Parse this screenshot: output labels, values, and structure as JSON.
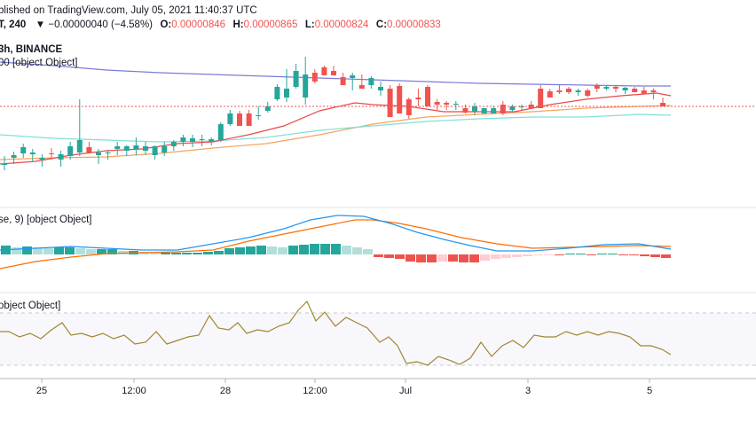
{
  "header": {
    "line1_prefix": "blished on TradingView.com, July 05, 2021 11:40:37 UTC",
    "interval": "T, 240",
    "change": "▼ −0.00000040 (−4.58%)",
    "o_label": "O:",
    "o_value": "0.00000846",
    "h_label": "H:",
    "h_value": "0.00000865",
    "l_label": "L:",
    "l_value": "0.00000824",
    "c_label": "C:",
    "c_value": "0.00000833",
    "exchange": "3h, BINANCE",
    "ma_label": "00 [object Object]"
  },
  "panes": {
    "macd_label": "se, 9) [object Object]",
    "rsi_label": "object Object]"
  },
  "colors": {
    "up": "#26a69a",
    "down": "#ef5350",
    "ma_long": "#7b7bdc",
    "ma_mid": "#f7a35c",
    "ma_short": "#e84a4a",
    "ma_cyan": "#7fe0d9",
    "macd_line": "#2196f3",
    "signal_line": "#ff6d00",
    "hist_up_strong": "#26a69a",
    "hist_up_weak": "#b2dfdb",
    "hist_down_strong": "#ef5350",
    "hist_down_weak": "#ffcdd2",
    "rsi": "#a08730",
    "last_price_line": "#ef5350"
  },
  "chart_data": {
    "type": "candlestick",
    "x_ticks": [
      "25",
      "12:00",
      "28",
      "12:00",
      "Jul",
      "3",
      "5"
    ],
    "price_pane": {
      "ohlc": [
        [
          186,
          185,
          192,
          176
        ],
        [
          178,
          175,
          185,
          171
        ],
        [
          173,
          166,
          178,
          162
        ],
        [
          174,
          172,
          182,
          168
        ],
        [
          180,
          178,
          188,
          174
        ],
        [
          173,
          174,
          180,
          167
        ],
        [
          180,
          174,
          188,
          170
        ],
        [
          176,
          165,
          180,
          160
        ],
        [
          172,
          158,
          176,
          112
        ],
        [
          166,
          172,
          170,
          160
        ],
        [
          175,
          172,
          185,
          168
        ],
        [
          173,
          172,
          180,
          169
        ],
        [
          168,
          165,
          175,
          160
        ],
        [
          170,
          165,
          176,
          164
        ],
        [
          168,
          164,
          175,
          155
        ],
        [
          170,
          165,
          175,
          160
        ],
        [
          175,
          165,
          180,
          164
        ],
        [
          172,
          165,
          176,
          160
        ],
        [
          165,
          160,
          170,
          158
        ],
        [
          160,
          155,
          165,
          152
        ],
        [
          160,
          156,
          166,
          152
        ],
        [
          158,
          157,
          165,
          152
        ],
        [
          160,
          157,
          164,
          155
        ],
        [
          158,
          140,
          160,
          138
        ],
        [
          140,
          128,
          142,
          124
        ],
        [
          128,
          142,
          130,
          125
        ],
        [
          128,
          142,
          130,
          124
        ],
        [
          130,
          130,
          135,
          120
        ],
        [
          125,
          120,
          127,
          115
        ],
        [
          112,
          98,
          114,
          95
        ],
        [
          110,
          100,
          115,
          78
        ],
        [
          98,
          80,
          100,
          72
        ],
        [
          110,
          84,
          118,
          64
        ],
        [
          82,
          92,
          94,
          78
        ],
        [
          76,
          85,
          82,
          74
        ],
        [
          80,
          85,
          85,
          74
        ],
        [
          87,
          96,
          95,
          82
        ],
        [
          88,
          85,
          102,
          82
        ],
        [
          96,
          100,
          92,
          84
        ],
        [
          96,
          88,
          100,
          86
        ],
        [
          102,
          98,
          108,
          92
        ],
        [
          100,
          132,
          100,
          96
        ],
        [
          97,
          128,
          98,
          94
        ],
        [
          112,
          130,
          134,
          110
        ],
        [
          110,
          112,
          120,
          100
        ],
        [
          98,
          120,
          118,
          96
        ],
        [
          115,
          118,
          124,
          112
        ],
        [
          116,
          118,
          124,
          114
        ],
        [
          118,
          117,
          124,
          114
        ],
        [
          122,
          127,
          128,
          118
        ],
        [
          126,
          120,
          130,
          116
        ],
        [
          128,
          122,
          128,
          124
        ],
        [
          128,
          122,
          125,
          120
        ],
        [
          118,
          128,
          130,
          114
        ],
        [
          124,
          120,
          126,
          118
        ],
        [
          120,
          120,
          124,
          118
        ],
        [
          118,
          122,
          122,
          114
        ],
        [
          100,
          122,
          120,
          96
        ],
        [
          103,
          110,
          104,
          100
        ],
        [
          102,
          104,
          106,
          96
        ],
        [
          100,
          104,
          106,
          98
        ],
        [
          104,
          102,
          108,
          100
        ],
        [
          102,
          108,
          110,
          100
        ],
        [
          96,
          100,
          104,
          94
        ],
        [
          100,
          98,
          102,
          96
        ],
        [
          98,
          100,
          104,
          96
        ],
        [
          102,
          99,
          106,
          98
        ],
        [
          100,
          104,
          104,
          98
        ],
        [
          102,
          106,
          104,
          98
        ],
        [
          102,
          104,
          112,
          100
        ],
        [
          116,
          120,
          120,
          110
        ]
      ],
      "ma_long": [
        [
          0,
          70
        ],
        [
          60,
          74
        ],
        [
          120,
          79
        ],
        [
          180,
          82
        ],
        [
          240,
          84
        ],
        [
          300,
          86
        ],
        [
          360,
          88
        ],
        [
          420,
          90
        ],
        [
          480,
          92
        ],
        [
          540,
          94
        ],
        [
          600,
          95
        ],
        [
          660,
          96
        ],
        [
          720,
          97
        ],
        [
          756,
          97
        ]
      ],
      "ma_mid": [
        [
          0,
          180
        ],
        [
          60,
          178
        ],
        [
          120,
          177
        ],
        [
          180,
          173
        ],
        [
          240,
          167
        ],
        [
          300,
          162
        ],
        [
          360,
          152
        ],
        [
          420,
          140
        ],
        [
          480,
          132
        ],
        [
          540,
          129
        ],
        [
          600,
          126
        ],
        [
          660,
          122
        ],
        [
          720,
          120
        ],
        [
          756,
          119
        ]
      ],
      "ma_short": [
        [
          0,
          185
        ],
        [
          40,
          182
        ],
        [
          80,
          175
        ],
        [
          120,
          170
        ],
        [
          160,
          168
        ],
        [
          200,
          162
        ],
        [
          240,
          160
        ],
        [
          280,
          152
        ],
        [
          320,
          142
        ],
        [
          360,
          125
        ],
        [
          400,
          116
        ],
        [
          420,
          118
        ],
        [
          460,
          120
        ],
        [
          500,
          126
        ],
        [
          540,
          126
        ],
        [
          580,
          126
        ],
        [
          620,
          118
        ],
        [
          660,
          112
        ],
        [
          700,
          108
        ],
        [
          740,
          105
        ],
        [
          756,
          108
        ]
      ],
      "ma_cyan": [
        [
          0,
          152
        ],
        [
          60,
          156
        ],
        [
          120,
          158
        ],
        [
          180,
          160
        ],
        [
          240,
          159
        ],
        [
          300,
          155
        ],
        [
          360,
          147
        ],
        [
          420,
          142
        ],
        [
          480,
          137
        ],
        [
          540,
          134
        ],
        [
          600,
          132
        ],
        [
          660,
          132
        ],
        [
          720,
          129
        ],
        [
          756,
          130
        ]
      ],
      "last_price_y": 120
    },
    "macd_pane": {
      "macd_line": [
        [
          0,
          282
        ],
        [
          40,
          280
        ],
        [
          80,
          278
        ],
        [
          120,
          280
        ],
        [
          160,
          282
        ],
        [
          200,
          282
        ],
        [
          240,
          275
        ],
        [
          280,
          268
        ],
        [
          320,
          258
        ],
        [
          350,
          248
        ],
        [
          380,
          243
        ],
        [
          410,
          244
        ],
        [
          440,
          252
        ],
        [
          470,
          262
        ],
        [
          500,
          270
        ],
        [
          530,
          277
        ],
        [
          560,
          283
        ],
        [
          600,
          283
        ],
        [
          640,
          280
        ],
        [
          680,
          276
        ],
        [
          720,
          275
        ],
        [
          756,
          281
        ]
      ],
      "signal_line": [
        [
          0,
          303
        ],
        [
          40,
          295
        ],
        [
          80,
          290
        ],
        [
          120,
          286
        ],
        [
          160,
          285
        ],
        [
          200,
          284
        ],
        [
          240,
          282
        ],
        [
          280,
          272
        ],
        [
          320,
          264
        ],
        [
          360,
          256
        ],
        [
          400,
          248
        ],
        [
          420,
          248
        ],
        [
          450,
          252
        ],
        [
          480,
          258
        ],
        [
          520,
          268
        ],
        [
          560,
          275
        ],
        [
          600,
          280
        ],
        [
          640,
          279
        ],
        [
          680,
          278
        ],
        [
          720,
          277
        ],
        [
          756,
          278
        ]
      ],
      "zero_y": 287,
      "histogram": [
        [
          6,
          287,
          277
        ],
        [
          18,
          287,
          279
        ],
        [
          30,
          287,
          278
        ],
        [
          42,
          287,
          279
        ],
        [
          54,
          287,
          280
        ],
        [
          66,
          287,
          279
        ],
        [
          78,
          287,
          279
        ],
        [
          90,
          287,
          280
        ],
        [
          102,
          287,
          281
        ],
        [
          114,
          287,
          281
        ],
        [
          126,
          287,
          281
        ],
        [
          138,
          287,
          283
        ],
        [
          150,
          287,
          283
        ],
        [
          162,
          287,
          284
        ],
        [
          174,
          287,
          285
        ],
        [
          186,
          287,
          285
        ],
        [
          198,
          287,
          285
        ],
        [
          210,
          287,
          285
        ],
        [
          222,
          287,
          285
        ],
        [
          234,
          287,
          284
        ],
        [
          246,
          287,
          283
        ],
        [
          258,
          287,
          280
        ],
        [
          270,
          287,
          279
        ],
        [
          282,
          287,
          278
        ],
        [
          294,
          287,
          277
        ],
        [
          306,
          287,
          278
        ],
        [
          318,
          287,
          279
        ],
        [
          330,
          287,
          277
        ],
        [
          342,
          287,
          276
        ],
        [
          354,
          287,
          275
        ],
        [
          366,
          287,
          275
        ],
        [
          378,
          287,
          275
        ],
        [
          390,
          287,
          277
        ],
        [
          402,
          287,
          279
        ],
        [
          414,
          287,
          281
        ],
        [
          426,
          287,
          290
        ],
        [
          438,
          287,
          291
        ],
        [
          450,
          287,
          292
        ],
        [
          462,
          287,
          295
        ],
        [
          474,
          287,
          296
        ],
        [
          486,
          287,
          296
        ],
        [
          498,
          287,
          295
        ],
        [
          510,
          287,
          295
        ],
        [
          522,
          287,
          296
        ],
        [
          534,
          287,
          296
        ],
        [
          546,
          287,
          294
        ],
        [
          558,
          287,
          292
        ],
        [
          570,
          287,
          291
        ],
        [
          582,
          287,
          290
        ],
        [
          594,
          287,
          289
        ],
        [
          606,
          287,
          288
        ],
        [
          618,
          287,
          287
        ],
        [
          630,
          287,
          287
        ],
        [
          642,
          287,
          286
        ],
        [
          654,
          287,
          286
        ],
        [
          666,
          287,
          287
        ],
        [
          678,
          287,
          286
        ],
        [
          690,
          287,
          286
        ],
        [
          702,
          287,
          287
        ],
        [
          714,
          287,
          287
        ],
        [
          726,
          287,
          289
        ],
        [
          738,
          287,
          290
        ],
        [
          750,
          287,
          291
        ]
      ]
    },
    "rsi_pane": {
      "band_upper_y": 353,
      "band_lower_y": 412,
      "values": [
        [
          0,
          374
        ],
        [
          10,
          374
        ],
        [
          22,
          380
        ],
        [
          34,
          376
        ],
        [
          46,
          382
        ],
        [
          58,
          372
        ],
        [
          70,
          364
        ],
        [
          80,
          378
        ],
        [
          92,
          376
        ],
        [
          104,
          380
        ],
        [
          116,
          376
        ],
        [
          128,
          382
        ],
        [
          140,
          378
        ],
        [
          152,
          388
        ],
        [
          164,
          386
        ],
        [
          176,
          374
        ],
        [
          188,
          388
        ],
        [
          200,
          384
        ],
        [
          212,
          380
        ],
        [
          224,
          378
        ],
        [
          236,
          356
        ],
        [
          246,
          370
        ],
        [
          258,
          372
        ],
        [
          268,
          364
        ],
        [
          278,
          376
        ],
        [
          290,
          372
        ],
        [
          302,
          374
        ],
        [
          314,
          368
        ],
        [
          326,
          364
        ],
        [
          336,
          350
        ],
        [
          346,
          340
        ],
        [
          356,
          362
        ],
        [
          366,
          352
        ],
        [
          378,
          368
        ],
        [
          390,
          358
        ],
        [
          402,
          364
        ],
        [
          414,
          370
        ],
        [
          428,
          386
        ],
        [
          438,
          380
        ],
        [
          448,
          390
        ],
        [
          458,
          410
        ],
        [
          470,
          408
        ],
        [
          482,
          412
        ],
        [
          494,
          402
        ],
        [
          506,
          406
        ],
        [
          518,
          411
        ],
        [
          530,
          404
        ],
        [
          542,
          386
        ],
        [
          554,
          402
        ],
        [
          566,
          390
        ],
        [
          578,
          384
        ],
        [
          590,
          392
        ],
        [
          602,
          378
        ],
        [
          614,
          380
        ],
        [
          626,
          380
        ],
        [
          638,
          374
        ],
        [
          650,
          378
        ],
        [
          662,
          374
        ],
        [
          674,
          378
        ],
        [
          686,
          374
        ],
        [
          698,
          376
        ],
        [
          710,
          380
        ],
        [
          722,
          390
        ],
        [
          734,
          390
        ],
        [
          746,
          394
        ],
        [
          756,
          400
        ]
      ]
    }
  }
}
